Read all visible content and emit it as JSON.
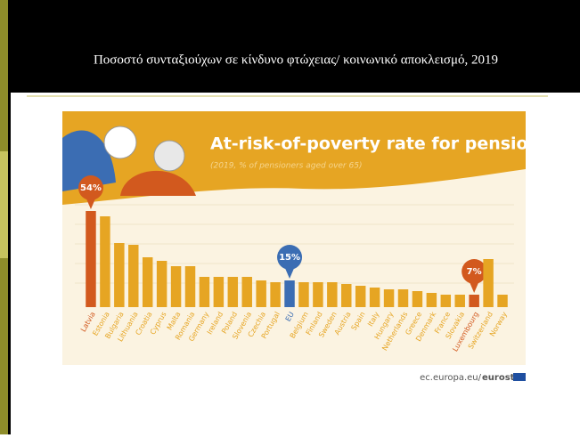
{
  "slide": {
    "title": "Ποσοστό συνταξιούχων σε κίνδυνο φτώχειας/ κοινωνικό αποκλεισμό, 2019",
    "source": "ec.europa.eu/",
    "source_brand": "eurostat"
  },
  "chart_data": {
    "type": "bar",
    "title": "At-risk-of-poverty rate for pensioners",
    "subtitle": "(2019, % of pensioners aged over 65)",
    "categories": [
      "Latvia",
      "Estonia",
      "Bulgaria",
      "Lithuania",
      "Croatia",
      "Cyprus",
      "Malta",
      "Romania",
      "Germany",
      "Ireland",
      "Poland",
      "Slovenia",
      "Czechia",
      "Portugal",
      "EU",
      "Belgium",
      "Finland",
      "Sweden",
      "Austria",
      "Spain",
      "Italy",
      "Hungary",
      "Netherlands",
      "Greece",
      "Denmark",
      "France",
      "Slovakia",
      "Luxembourg",
      "Switzerland",
      "Norway"
    ],
    "values": [
      54,
      51,
      36,
      35,
      28,
      26,
      23,
      23,
      17,
      17,
      17,
      17,
      15,
      14,
      15,
      14,
      14,
      14,
      13,
      12,
      11,
      10,
      10,
      9,
      8,
      7,
      7,
      7,
      27,
      7
    ],
    "value_labels": [
      "54%",
      null,
      null,
      null,
      null,
      null,
      null,
      null,
      null,
      null,
      null,
      null,
      null,
      null,
      "15%",
      null,
      null,
      null,
      null,
      null,
      null,
      null,
      null,
      null,
      null,
      null,
      null,
      "7%",
      null,
      null
    ],
    "colors": [
      "#d2591e",
      "#e6a523",
      "#e6a523",
      "#e6a523",
      "#e6a523",
      "#e6a523",
      "#e6a523",
      "#e6a523",
      "#e6a523",
      "#e6a523",
      "#e6a523",
      "#e6a523",
      "#e6a523",
      "#e6a523",
      "#3b6db3",
      "#e6a523",
      "#e6a523",
      "#e6a523",
      "#e6a523",
      "#e6a523",
      "#e6a523",
      "#e6a523",
      "#e6a523",
      "#e6a523",
      "#e6a523",
      "#e6a523",
      "#e6a523",
      "#d2591e",
      "#e6a523",
      "#e6a523"
    ],
    "ylim": [
      0,
      60
    ]
  }
}
